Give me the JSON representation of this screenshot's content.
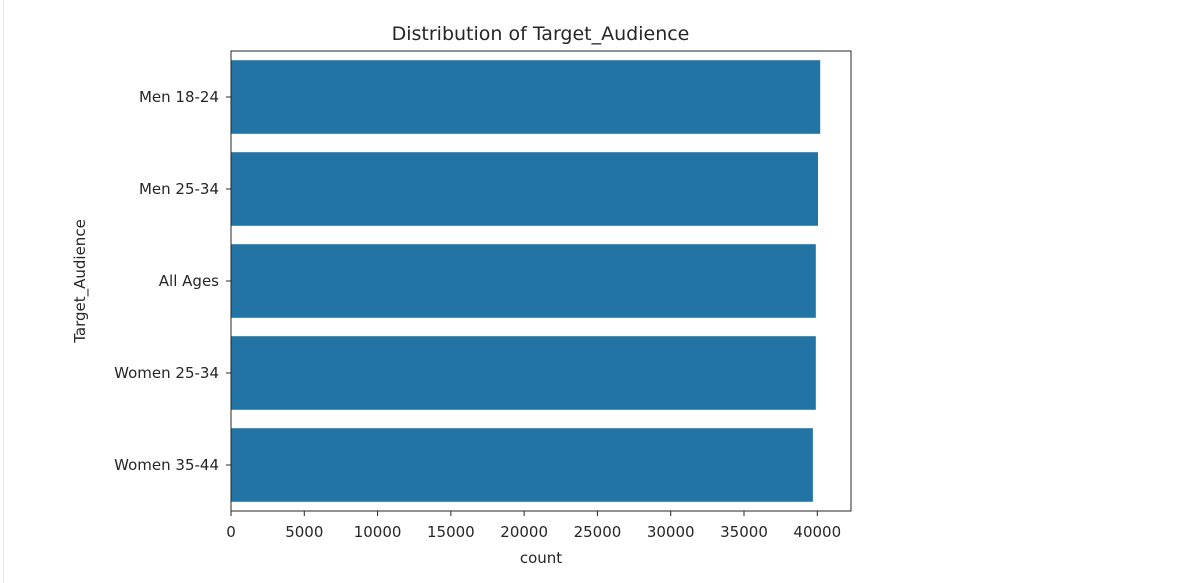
{
  "chart_data": {
    "type": "bar",
    "orientation": "horizontal",
    "title": "Distribution of Target_Audience",
    "xlabel": "count",
    "ylabel": "Target_Audience",
    "categories": [
      "Men 18-24",
      "Men 25-34",
      "All Ages",
      "Women 25-34",
      "Women 35-44"
    ],
    "values": [
      40200,
      40050,
      39900,
      39900,
      39700
    ],
    "xlim": [
      0,
      42300
    ],
    "xticks": [
      0,
      5000,
      10000,
      15000,
      20000,
      25000,
      30000,
      35000,
      40000
    ],
    "grid": false,
    "bar_color": "#2274a5"
  }
}
